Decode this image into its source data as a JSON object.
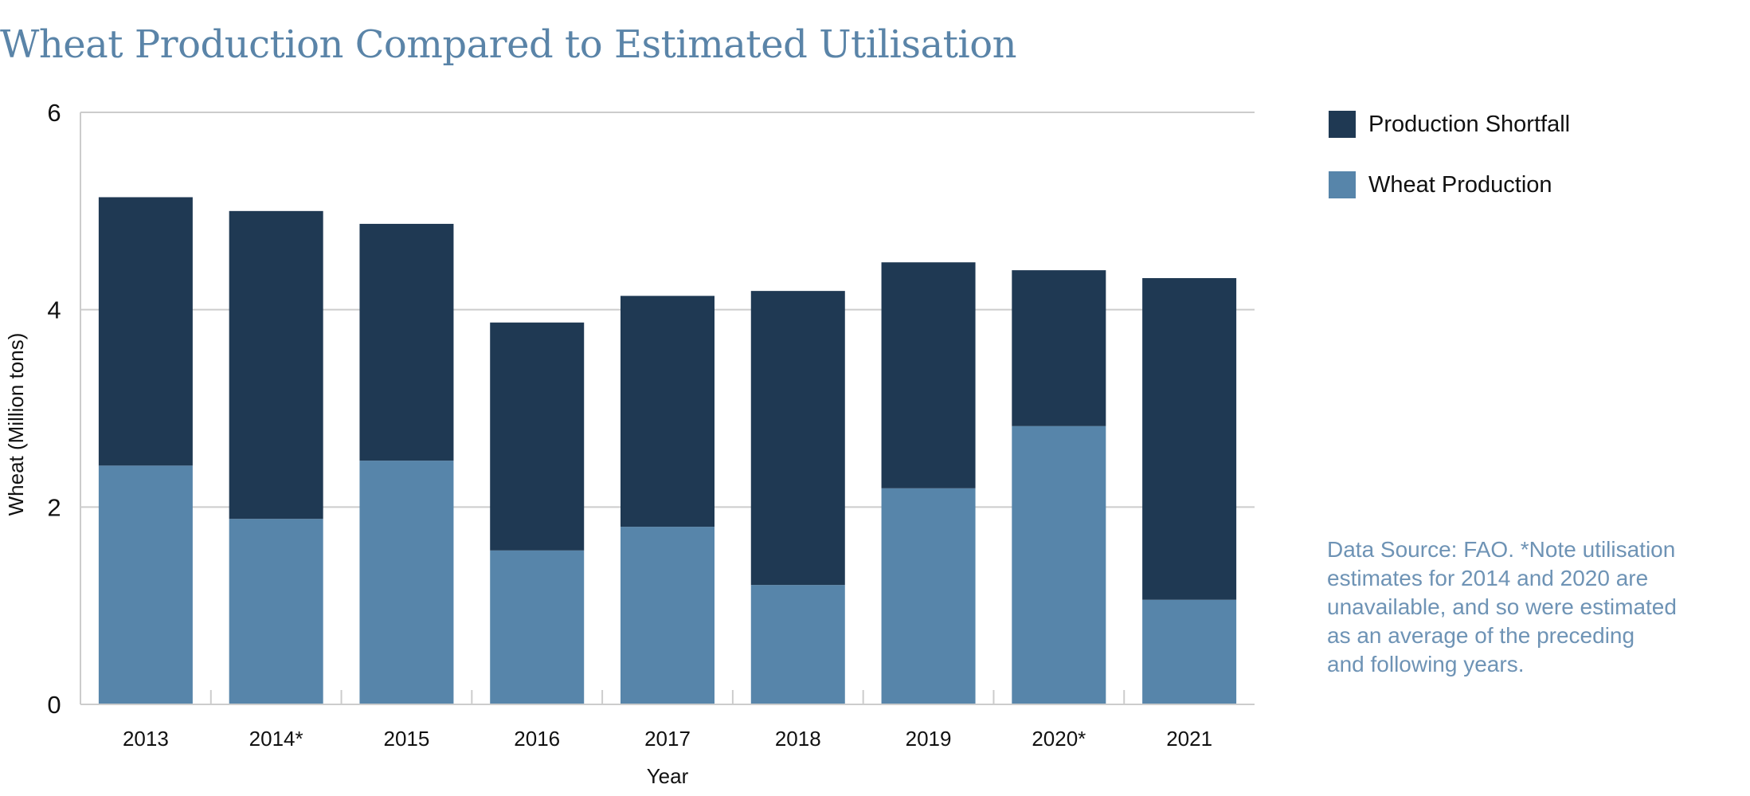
{
  "title": "Wheat Production Compared to Estimated Utilisation",
  "note": "Data Source: FAO. *Note utilisation estimates for 2014 and 2020 are unavailable, and so were estimated as an average of the preceding and following years.",
  "colors": {
    "shortfall": "#1f3953",
    "production": "#5785aa",
    "title": "#5a84a8",
    "note": "#6e93b5",
    "grid": "#cccccc"
  },
  "chart_data": {
    "type": "bar",
    "stacked": true,
    "categories": [
      "2013",
      "2014*",
      "2015",
      "2016",
      "2017",
      "2018",
      "2019",
      "2020*",
      "2021"
    ],
    "series": [
      {
        "name": "Wheat Production",
        "values": [
          2.42,
          1.88,
          2.47,
          1.56,
          1.8,
          1.21,
          2.19,
          2.82,
          1.06
        ]
      },
      {
        "name": "Production Shortfall",
        "values": [
          2.72,
          3.12,
          2.4,
          2.31,
          2.34,
          2.98,
          2.29,
          1.58,
          3.26
        ]
      }
    ],
    "legend": [
      "Production Shortfall",
      "Wheat Production"
    ],
    "legend_position": "top-right",
    "xlabel": "Year",
    "ylabel": "Wheat (Million tons)",
    "ylim": [
      0,
      6
    ],
    "yticks": [
      "0",
      "2",
      "4",
      "6"
    ],
    "grid": true
  }
}
